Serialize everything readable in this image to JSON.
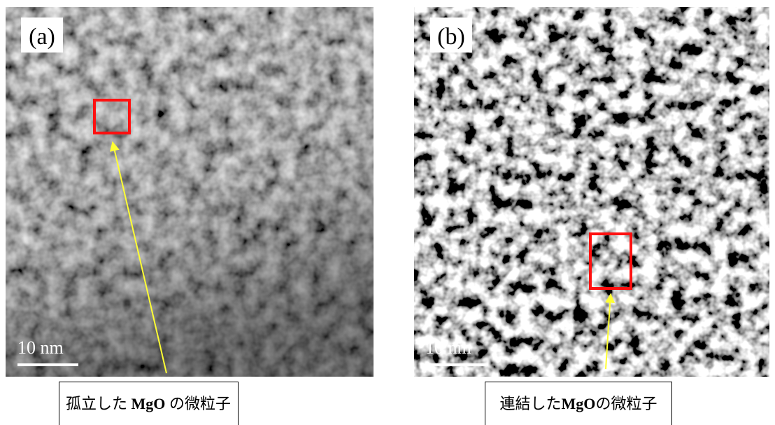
{
  "panels": [
    {
      "label": "(a)",
      "scale_bar": "10 nm",
      "caption": [
        "孤立した ",
        "MgO",
        " の微粒子"
      ]
    },
    {
      "label": "(b)",
      "scale_bar": "10 nm",
      "caption": [
        "連結した",
        "MgO",
        "の微粒子"
      ]
    }
  ]
}
